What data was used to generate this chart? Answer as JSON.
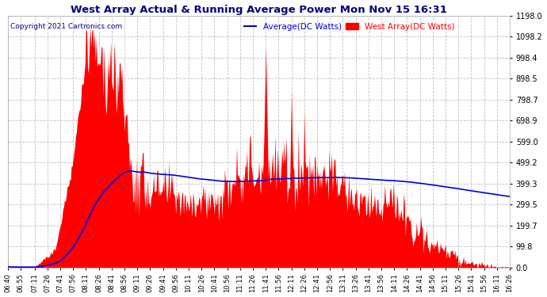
{
  "title": "West Array Actual & Running Average Power Mon Nov 15 16:31",
  "copyright": "Copyright 2021 Cartronics.com",
  "legend_avg": "Average(DC Watts)",
  "legend_west": "West Array(DC Watts)",
  "ymax": 1198.0,
  "yticks": [
    0.0,
    99.8,
    199.7,
    299.5,
    399.3,
    499.2,
    599.0,
    698.9,
    798.7,
    898.5,
    998.4,
    1098.2,
    1198.0
  ],
  "bg_color": "#ffffff",
  "grid_color": "#c0c0c0",
  "fill_color": "#ff0000",
  "avg_line_color": "#0000dd",
  "title_color": "#000080",
  "copyright_color": "#000080",
  "time_labels": [
    "06:40",
    "06:55",
    "07:11",
    "07:26",
    "07:41",
    "07:56",
    "08:11",
    "08:26",
    "08:41",
    "08:56",
    "09:11",
    "09:26",
    "09:41",
    "09:56",
    "10:11",
    "10:26",
    "10:41",
    "10:56",
    "11:11",
    "11:26",
    "11:41",
    "11:56",
    "12:11",
    "12:26",
    "12:41",
    "12:56",
    "13:11",
    "13:26",
    "13:41",
    "13:56",
    "14:11",
    "14:26",
    "14:41",
    "14:56",
    "15:11",
    "15:26",
    "15:41",
    "15:56",
    "16:11",
    "16:26"
  ]
}
